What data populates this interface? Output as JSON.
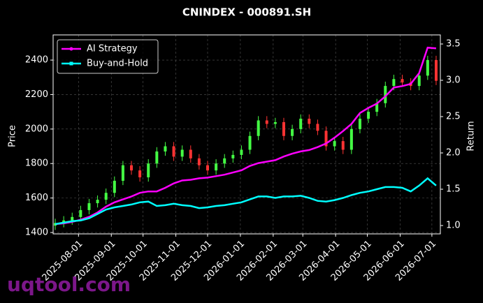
{
  "chart_data": {
    "type": "candlestick",
    "title": "CNINDEX - 000891.SH",
    "ylabel": "Price",
    "y2label": "Return",
    "watermark": "uqtool.com",
    "x": [
      "2025-07-10",
      "2025-07-18",
      "2025-07-26",
      "2025-08-03",
      "2025-08-11",
      "2025-08-19",
      "2025-08-27",
      "2025-09-04",
      "2025-09-12",
      "2025-09-20",
      "2025-09-28",
      "2025-10-06",
      "2025-10-14",
      "2025-10-22",
      "2025-10-30",
      "2025-11-07",
      "2025-11-15",
      "2025-11-23",
      "2025-12-01",
      "2025-12-09",
      "2025-12-17",
      "2025-12-25",
      "2026-01-02",
      "2026-01-10",
      "2026-01-18",
      "2026-01-26",
      "2026-02-03",
      "2026-02-11",
      "2026-02-19",
      "2026-02-27",
      "2026-03-07",
      "2026-03-15",
      "2026-03-23",
      "2026-03-31",
      "2026-04-08",
      "2026-04-16",
      "2026-04-24",
      "2026-05-02",
      "2026-05-10",
      "2026-05-18",
      "2026-05-26",
      "2026-06-03",
      "2026-06-11",
      "2026-06-19",
      "2026-06-27",
      "2026-07-05"
    ],
    "candles": {
      "up_color": "#44ff44",
      "down_color": "#ff3333",
      "open": [
        1440,
        1455,
        1470,
        1490,
        1530,
        1570,
        1590,
        1630,
        1700,
        1790,
        1760,
        1720,
        1800,
        1870,
        1900,
        1840,
        1880,
        1830,
        1790,
        1760,
        1800,
        1830,
        1850,
        1880,
        1960,
        2050,
        2030,
        2040,
        1960,
        2000,
        2060,
        2030,
        1990,
        1900,
        1930,
        1880,
        2000,
        2060,
        2100,
        2150,
        2250,
        2290,
        2270,
        2250,
        2310,
        2400
      ],
      "high": [
        1480,
        1495,
        1515,
        1555,
        1595,
        1615,
        1655,
        1725,
        1815,
        1815,
        1785,
        1825,
        1895,
        1925,
        1925,
        1905,
        1905,
        1855,
        1815,
        1825,
        1855,
        1875,
        1905,
        1985,
        2075,
        2075,
        2065,
        2065,
        2025,
        2085,
        2085,
        2055,
        2015,
        1955,
        1955,
        2025,
        2085,
        2125,
        2175,
        2275,
        2315,
        2315,
        2295,
        2335,
        2425,
        2425
      ],
      "low": [
        1415,
        1430,
        1445,
        1465,
        1505,
        1545,
        1565,
        1605,
        1675,
        1735,
        1695,
        1695,
        1775,
        1845,
        1815,
        1815,
        1805,
        1765,
        1735,
        1735,
        1775,
        1805,
        1825,
        1855,
        1935,
        2005,
        2005,
        1935,
        1935,
        1975,
        2005,
        1965,
        1875,
        1875,
        1855,
        1855,
        1975,
        2035,
        2075,
        2125,
        2225,
        2245,
        2225,
        2225,
        2285,
        2255
      ],
      "close": [
        1455,
        1470,
        1490,
        1530,
        1570,
        1590,
        1630,
        1700,
        1790,
        1760,
        1720,
        1800,
        1870,
        1900,
        1840,
        1880,
        1830,
        1790,
        1760,
        1800,
        1830,
        1850,
        1880,
        1960,
        2050,
        2030,
        2040,
        1960,
        2000,
        2060,
        2030,
        1990,
        1900,
        1930,
        1880,
        2000,
        2060,
        2100,
        2150,
        2250,
        2290,
        2270,
        2250,
        2310,
        2400,
        2280
      ]
    },
    "series": [
      {
        "name": "AI Strategy",
        "color": "#ff00ff",
        "axis": "y2",
        "values": [
          1.02,
          1.03,
          1.05,
          1.08,
          1.12,
          1.18,
          1.26,
          1.32,
          1.36,
          1.4,
          1.45,
          1.47,
          1.47,
          1.52,
          1.58,
          1.62,
          1.63,
          1.65,
          1.66,
          1.68,
          1.7,
          1.73,
          1.76,
          1.82,
          1.86,
          1.88,
          1.9,
          1.95,
          1.99,
          2.02,
          2.04,
          2.08,
          2.13,
          2.21,
          2.3,
          2.4,
          2.55,
          2.62,
          2.68,
          2.78,
          2.9,
          2.92,
          2.95,
          3.1,
          3.45,
          3.44
        ]
      },
      {
        "name": "Buy-and-Hold",
        "color": "#00ffff",
        "axis": "y2",
        "values": [
          1.02,
          1.04,
          1.06,
          1.07,
          1.1,
          1.16,
          1.22,
          1.25,
          1.27,
          1.29,
          1.32,
          1.33,
          1.27,
          1.28,
          1.3,
          1.28,
          1.27,
          1.24,
          1.25,
          1.27,
          1.28,
          1.3,
          1.32,
          1.36,
          1.4,
          1.4,
          1.38,
          1.4,
          1.4,
          1.41,
          1.38,
          1.34,
          1.33,
          1.35,
          1.38,
          1.42,
          1.45,
          1.47,
          1.5,
          1.53,
          1.53,
          1.52,
          1.47,
          1.55,
          1.65,
          1.55
        ]
      }
    ],
    "xlim": [
      "2025-07-08",
      "2026-07-09"
    ],
    "xticks": [
      "2025-08-01",
      "2025-09-01",
      "2025-10-01",
      "2025-11-01",
      "2025-12-01",
      "2026-01-01",
      "2026-02-01",
      "2026-03-01",
      "2026-04-01",
      "2026-05-01",
      "2026-06-01",
      "2026-07-01"
    ],
    "ylim": [
      1392,
      2546
    ],
    "yticks": [
      1400,
      1600,
      1800,
      2000,
      2200,
      2400
    ],
    "y2lim": [
      0.885,
      3.625
    ],
    "y2ticks": [
      {
        "value": 1,
        "label": "1.0"
      },
      1.5,
      {
        "value": 2,
        "label": "2.0"
      },
      2.5,
      {
        "value": 3,
        "label": "3.0"
      },
      3.5
    ],
    "grid": true,
    "legend": "upper left"
  }
}
